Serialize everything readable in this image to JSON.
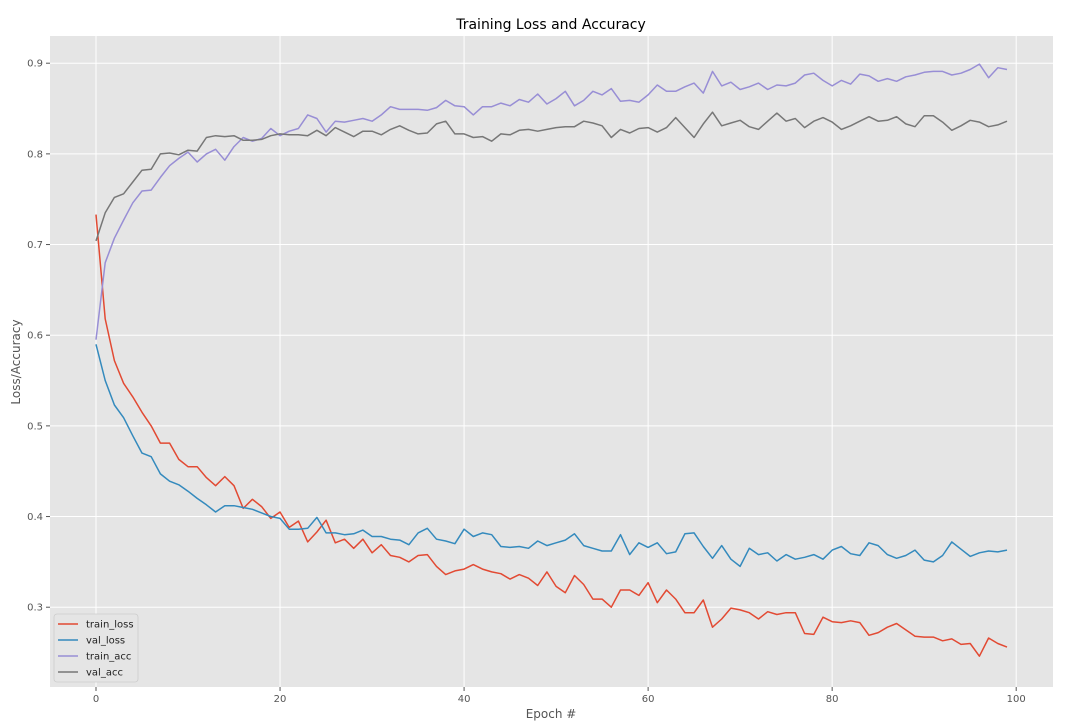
{
  "chart_data": {
    "type": "line",
    "title": "Training Loss and Accuracy",
    "xlabel": "Epoch #",
    "ylabel": "Loss/Accuracy",
    "xlim": [
      -5,
      104
    ],
    "ylim": [
      0.212,
      0.93
    ],
    "xticks": [
      0,
      20,
      40,
      60,
      80,
      100
    ],
    "yticks": [
      0.3,
      0.4,
      0.5,
      0.6,
      0.7,
      0.8,
      0.9
    ],
    "grid": true,
    "legend_position": "lower-left",
    "style": "ggplot",
    "x": [
      0,
      1,
      2,
      3,
      4,
      5,
      6,
      7,
      8,
      9,
      10,
      11,
      12,
      13,
      14,
      15,
      16,
      17,
      18,
      19,
      20,
      21,
      22,
      23,
      24,
      25,
      26,
      27,
      28,
      29,
      30,
      31,
      32,
      33,
      34,
      35,
      36,
      37,
      38,
      39,
      40,
      41,
      42,
      43,
      44,
      45,
      46,
      47,
      48,
      49,
      50,
      51,
      52,
      53,
      54,
      55,
      56,
      57,
      58,
      59,
      60,
      61,
      62,
      63,
      64,
      65,
      66,
      67,
      68,
      69,
      70,
      71,
      72,
      73,
      74,
      75,
      76,
      77,
      78,
      79,
      80,
      81,
      82,
      83,
      84,
      85,
      86,
      87,
      88,
      89,
      90,
      91,
      92,
      93,
      94,
      95,
      96,
      97,
      98,
      99
    ],
    "series": [
      {
        "name": "train_loss",
        "color": "#E24A33",
        "values": [
          0.733,
          0.618,
          0.572,
          0.547,
          0.532,
          0.515,
          0.5,
          0.481,
          0.481,
          0.463,
          0.455,
          0.455,
          0.443,
          0.434,
          0.444,
          0.434,
          0.409,
          0.419,
          0.411,
          0.398,
          0.405,
          0.388,
          0.395,
          0.372,
          0.383,
          0.396,
          0.371,
          0.375,
          0.365,
          0.375,
          0.36,
          0.369,
          0.357,
          0.355,
          0.35,
          0.357,
          0.358,
          0.345,
          0.336,
          0.34,
          0.342,
          0.347,
          0.342,
          0.339,
          0.337,
          0.331,
          0.336,
          0.332,
          0.324,
          0.339,
          0.323,
          0.316,
          0.335,
          0.325,
          0.309,
          0.309,
          0.3,
          0.319,
          0.319,
          0.313,
          0.327,
          0.305,
          0.319,
          0.309,
          0.294,
          0.294,
          0.308,
          0.278,
          0.287,
          0.299,
          0.297,
          0.294,
          0.287,
          0.295,
          0.292,
          0.294,
          0.294,
          0.271,
          0.27,
          0.289,
          0.284,
          0.283,
          0.285,
          0.283,
          0.269,
          0.272,
          0.278,
          0.282,
          0.275,
          0.268,
          0.267,
          0.267,
          0.263,
          0.265,
          0.259,
          0.26,
          0.246,
          0.266,
          0.26,
          0.256
        ]
      },
      {
        "name": "val_loss",
        "color": "#348ABD",
        "values": [
          0.59,
          0.55,
          0.523,
          0.509,
          0.489,
          0.47,
          0.466,
          0.447,
          0.439,
          0.435,
          0.428,
          0.42,
          0.413,
          0.405,
          0.412,
          0.412,
          0.41,
          0.408,
          0.404,
          0.4,
          0.398,
          0.386,
          0.386,
          0.387,
          0.399,
          0.382,
          0.382,
          0.38,
          0.381,
          0.385,
          0.378,
          0.378,
          0.375,
          0.374,
          0.369,
          0.382,
          0.387,
          0.375,
          0.373,
          0.37,
          0.386,
          0.378,
          0.382,
          0.38,
          0.367,
          0.366,
          0.367,
          0.365,
          0.373,
          0.368,
          0.371,
          0.374,
          0.381,
          0.368,
          0.365,
          0.362,
          0.362,
          0.38,
          0.358,
          0.371,
          0.366,
          0.371,
          0.359,
          0.361,
          0.381,
          0.382,
          0.367,
          0.354,
          0.368,
          0.353,
          0.345,
          0.365,
          0.358,
          0.36,
          0.351,
          0.358,
          0.353,
          0.355,
          0.358,
          0.353,
          0.363,
          0.367,
          0.359,
          0.357,
          0.371,
          0.368,
          0.358,
          0.354,
          0.357,
          0.363,
          0.352,
          0.35,
          0.357,
          0.372,
          0.364,
          0.356,
          0.36,
          0.362,
          0.361,
          0.363
        ]
      },
      {
        "name": "train_acc",
        "color": "#988ED5",
        "values": [
          0.595,
          0.68,
          0.707,
          0.727,
          0.746,
          0.759,
          0.76,
          0.774,
          0.787,
          0.795,
          0.802,
          0.791,
          0.8,
          0.805,
          0.793,
          0.808,
          0.818,
          0.814,
          0.817,
          0.828,
          0.82,
          0.825,
          0.828,
          0.843,
          0.839,
          0.824,
          0.836,
          0.835,
          0.837,
          0.839,
          0.836,
          0.843,
          0.852,
          0.849,
          0.849,
          0.849,
          0.848,
          0.851,
          0.859,
          0.853,
          0.852,
          0.843,
          0.852,
          0.852,
          0.856,
          0.853,
          0.86,
          0.857,
          0.866,
          0.855,
          0.861,
          0.869,
          0.853,
          0.859,
          0.869,
          0.865,
          0.872,
          0.858,
          0.859,
          0.857,
          0.865,
          0.876,
          0.869,
          0.869,
          0.874,
          0.878,
          0.867,
          0.891,
          0.875,
          0.879,
          0.871,
          0.874,
          0.878,
          0.871,
          0.876,
          0.875,
          0.878,
          0.887,
          0.889,
          0.881,
          0.875,
          0.881,
          0.877,
          0.888,
          0.886,
          0.88,
          0.883,
          0.88,
          0.885,
          0.887,
          0.89,
          0.891,
          0.891,
          0.887,
          0.889,
          0.893,
          0.899,
          0.884,
          0.895,
          0.893
        ]
      },
      {
        "name": "val_acc",
        "color": "#777777",
        "values": [
          0.704,
          0.735,
          0.752,
          0.756,
          0.769,
          0.782,
          0.783,
          0.8,
          0.801,
          0.799,
          0.804,
          0.803,
          0.818,
          0.82,
          0.819,
          0.82,
          0.815,
          0.815,
          0.816,
          0.82,
          0.822,
          0.821,
          0.821,
          0.82,
          0.826,
          0.82,
          0.829,
          0.824,
          0.819,
          0.825,
          0.825,
          0.821,
          0.827,
          0.831,
          0.826,
          0.822,
          0.823,
          0.833,
          0.836,
          0.822,
          0.822,
          0.818,
          0.819,
          0.814,
          0.822,
          0.821,
          0.826,
          0.827,
          0.825,
          0.827,
          0.829,
          0.83,
          0.83,
          0.836,
          0.834,
          0.831,
          0.818,
          0.827,
          0.823,
          0.828,
          0.829,
          0.824,
          0.829,
          0.84,
          0.829,
          0.818,
          0.833,
          0.846,
          0.831,
          0.834,
          0.837,
          0.83,
          0.827,
          0.836,
          0.845,
          0.836,
          0.839,
          0.829,
          0.836,
          0.84,
          0.835,
          0.827,
          0.831,
          0.836,
          0.841,
          0.836,
          0.837,
          0.841,
          0.833,
          0.83,
          0.842,
          0.842,
          0.835,
          0.826,
          0.831,
          0.837,
          0.835,
          0.83,
          0.832,
          0.836
        ]
      }
    ]
  }
}
